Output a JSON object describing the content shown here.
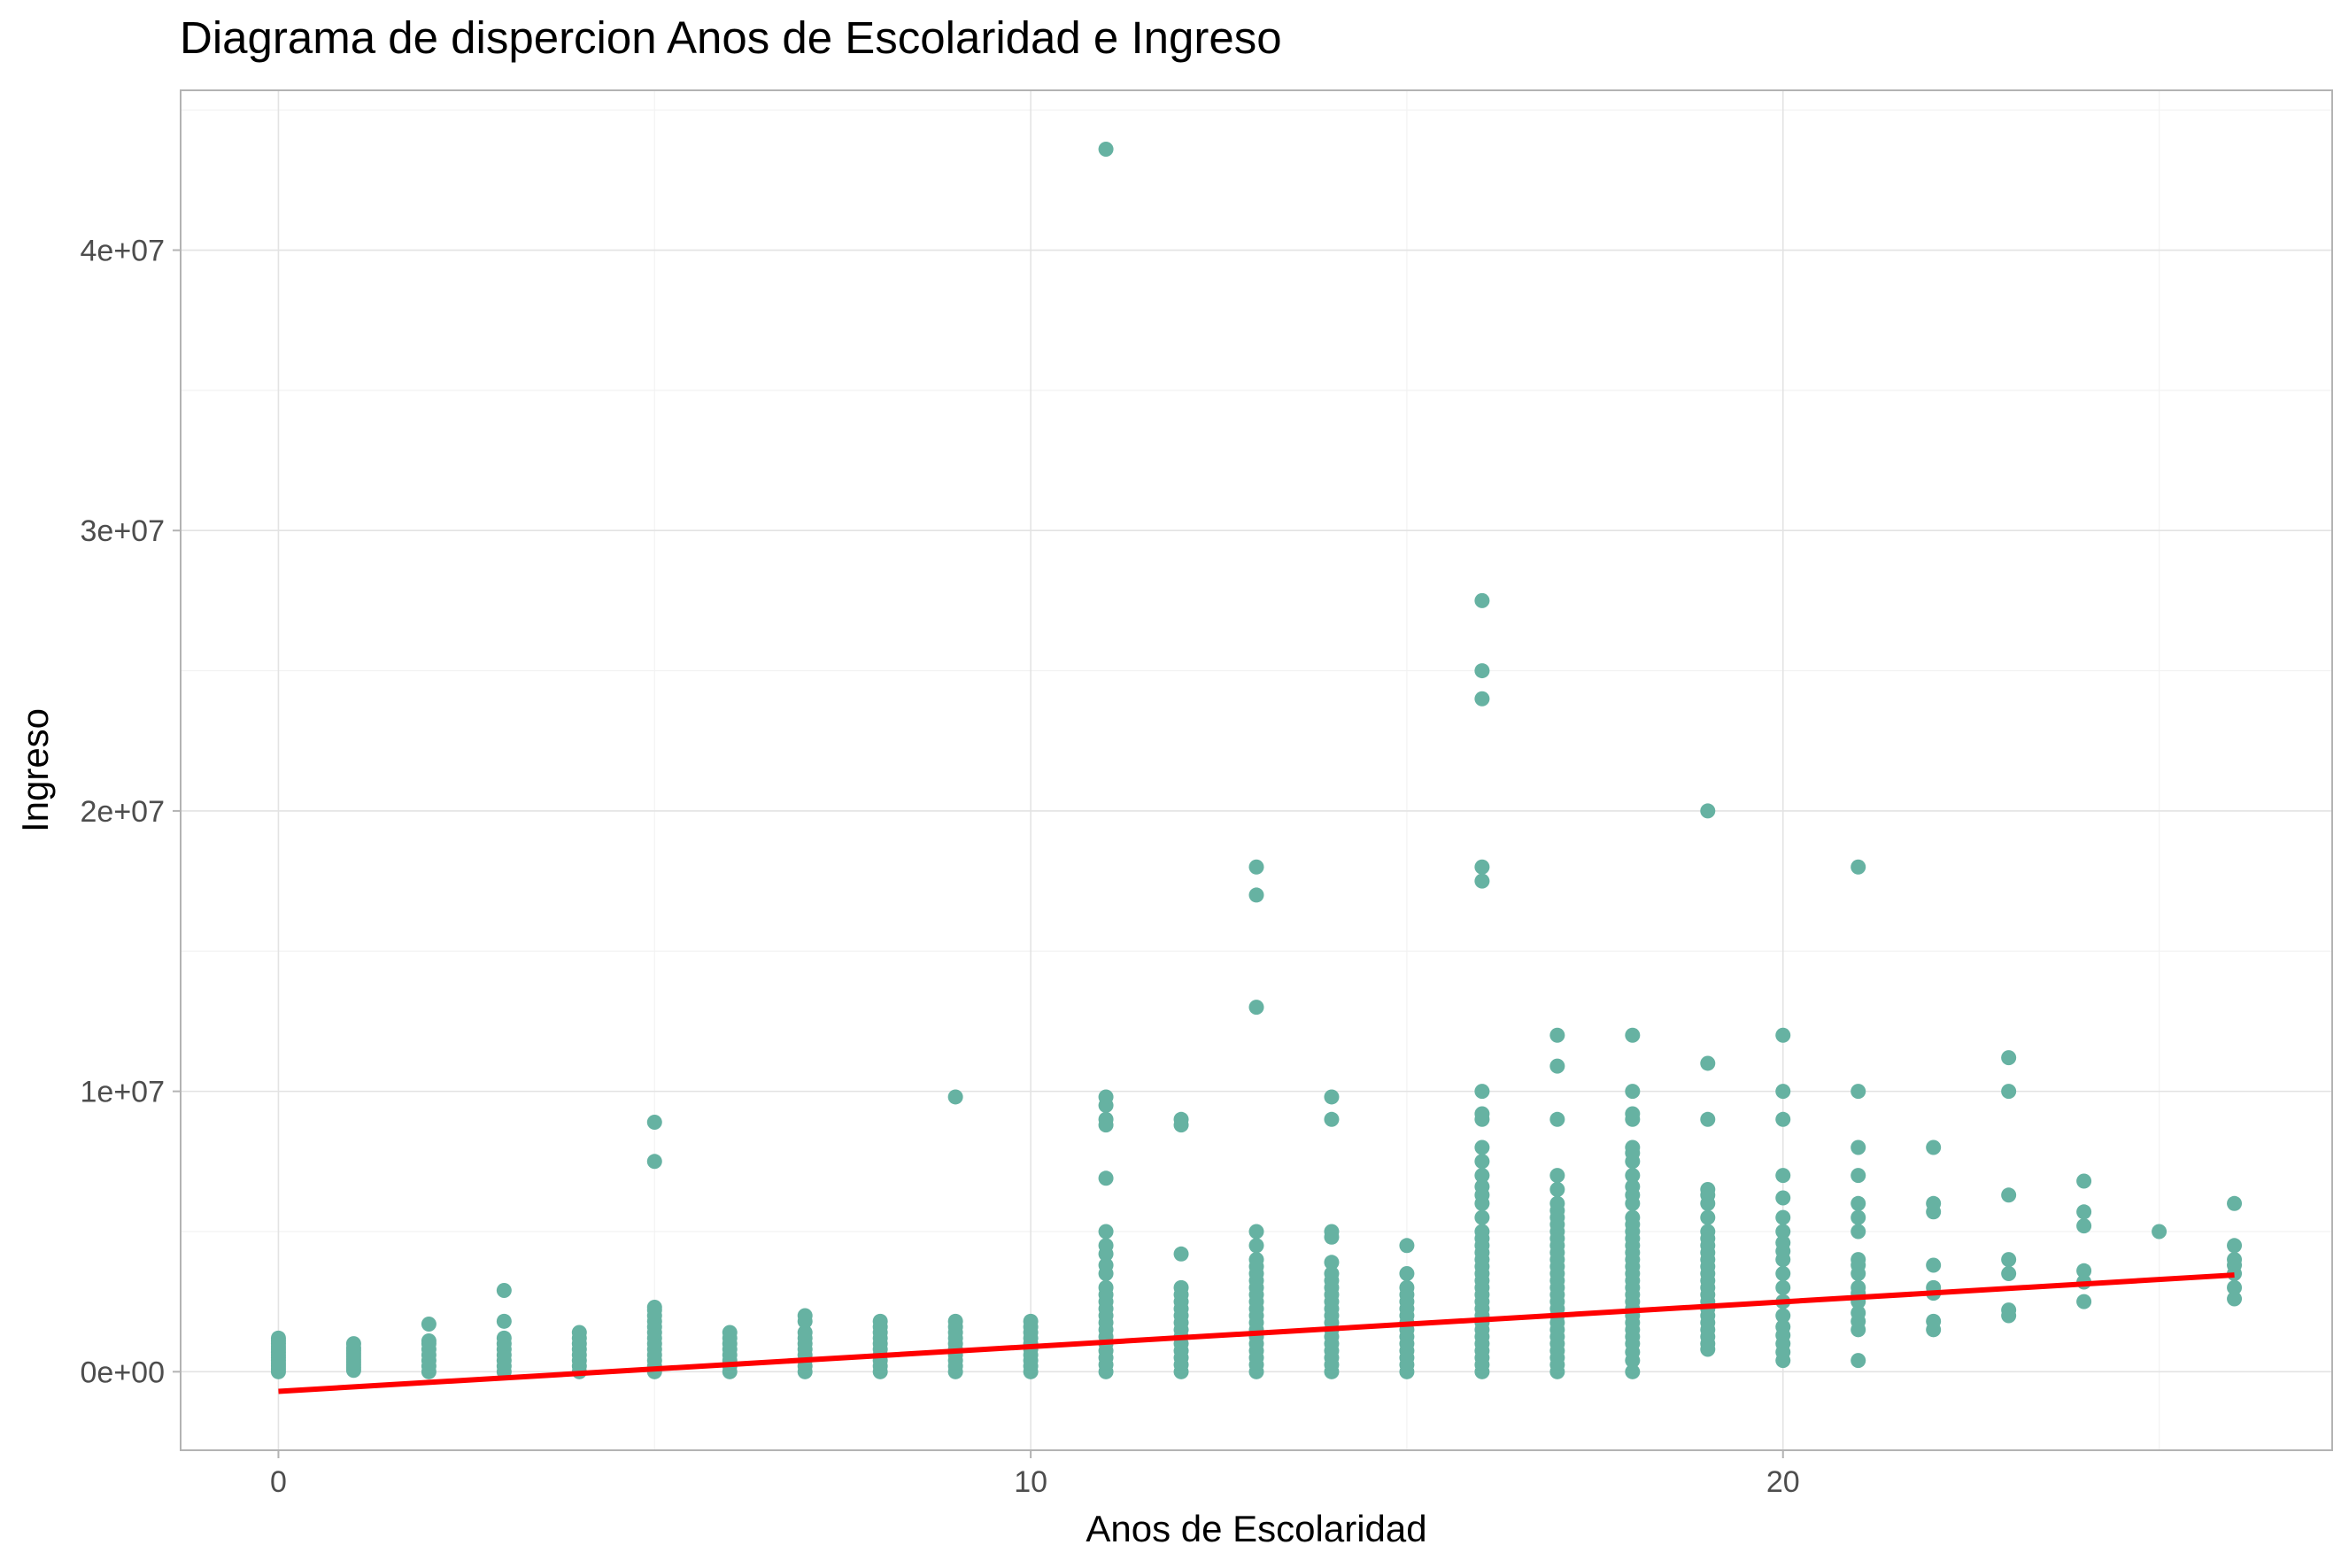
{
  "chart_data": {
    "type": "scatter",
    "title": "Diagrama de dispercion Anos de Escolaridad e Ingreso",
    "xlabel": "Anos de Escolaridad",
    "ylabel": "Ingreso",
    "xlim": [
      -1.3,
      27.3
    ],
    "ylim": [
      -2800000,
      45700000
    ],
    "x_ticks": [
      0,
      10,
      20
    ],
    "x_tick_labels": [
      "0",
      "10",
      "20"
    ],
    "y_ticks": [
      0,
      10000000,
      20000000,
      30000000,
      40000000
    ],
    "y_tick_labels": [
      "0e+00",
      "1e+07",
      "2e+07",
      "3e+07",
      "4e+07"
    ],
    "grid": true,
    "point_color": "#66b2a2",
    "line_color": "#ff0000",
    "fit_line": {
      "x": [
        0,
        26
      ],
      "y": [
        -700000,
        3450000
      ]
    },
    "points": [
      {
        "x": 0,
        "y": [
          0,
          100000,
          200000,
          300000,
          400000,
          500000,
          600000,
          700000,
          800000,
          900000,
          1000000,
          1100000,
          1200000
        ]
      },
      {
        "x": 1,
        "y": [
          50000,
          150000,
          250000,
          350000,
          450000,
          550000,
          650000,
          750000,
          850000,
          1000000
        ]
      },
      {
        "x": 2,
        "y": [
          0,
          200000,
          400000,
          600000,
          800000,
          1000000,
          1100000,
          1700000
        ]
      },
      {
        "x": 3,
        "y": [
          0,
          200000,
          400000,
          600000,
          800000,
          1000000,
          1200000,
          1800000,
          2900000
        ]
      },
      {
        "x": 4,
        "y": [
          0,
          200000,
          400000,
          600000,
          800000,
          1000000,
          1200000,
          1400000
        ]
      },
      {
        "x": 5,
        "y": [
          0,
          200000,
          400000,
          600000,
          800000,
          1000000,
          1200000,
          1400000,
          1600000,
          1800000,
          2000000,
          2200000,
          2300000,
          7500000,
          8900000
        ]
      },
      {
        "x": 6,
        "y": [
          0,
          200000,
          400000,
          600000,
          800000,
          1000000,
          1200000,
          1400000
        ]
      },
      {
        "x": 7,
        "y": [
          0,
          200000,
          400000,
          600000,
          800000,
          1000000,
          1200000,
          1400000,
          1800000,
          2000000
        ]
      },
      {
        "x": 8,
        "y": [
          0,
          200000,
          400000,
          600000,
          800000,
          1000000,
          1200000,
          1400000,
          1600000,
          1800000
        ]
      },
      {
        "x": 9,
        "y": [
          0,
          200000,
          400000,
          600000,
          800000,
          1000000,
          1200000,
          1400000,
          1600000,
          1800000,
          9800000
        ]
      },
      {
        "x": 10,
        "y": [
          0,
          200000,
          400000,
          600000,
          800000,
          1000000,
          1200000,
          1400000,
          1600000,
          1800000
        ]
      },
      {
        "x": 11,
        "y": [
          0,
          250000,
          500000,
          750000,
          1000000,
          1250000,
          1500000,
          1750000,
          2000000,
          2250000,
          2500000,
          2750000,
          3000000,
          3500000,
          3800000,
          4200000,
          4500000,
          5000000,
          6900000,
          8800000,
          9000000,
          9500000,
          9800000,
          43600000
        ]
      },
      {
        "x": 12,
        "y": [
          0,
          250000,
          500000,
          750000,
          1000000,
          1250000,
          1500000,
          1750000,
          2000000,
          2250000,
          2500000,
          2750000,
          3000000,
          4200000,
          8800000,
          9000000
        ]
      },
      {
        "x": 13,
        "y": [
          0,
          250000,
          500000,
          750000,
          1000000,
          1250000,
          1500000,
          1750000,
          2000000,
          2250000,
          2500000,
          2750000,
          3000000,
          3250000,
          3500000,
          3750000,
          4000000,
          4500000,
          5000000,
          13000000,
          17000000,
          18000000
        ]
      },
      {
        "x": 14,
        "y": [
          0,
          250000,
          500000,
          750000,
          1000000,
          1250000,
          1500000,
          1750000,
          2000000,
          2250000,
          2500000,
          2750000,
          3000000,
          3250000,
          3500000,
          3900000,
          4800000,
          5000000,
          9000000,
          9800000
        ]
      },
      {
        "x": 15,
        "y": [
          0,
          250000,
          500000,
          750000,
          1000000,
          1250000,
          1500000,
          1750000,
          2000000,
          2250000,
          2500000,
          2750000,
          3000000,
          3500000,
          4500000
        ]
      },
      {
        "x": 16,
        "y": [
          0,
          250000,
          500000,
          750000,
          1000000,
          1250000,
          1500000,
          1750000,
          2000000,
          2250000,
          2500000,
          2750000,
          3000000,
          3250000,
          3500000,
          3750000,
          4000000,
          4250000,
          4500000,
          4750000,
          5000000,
          5500000,
          6000000,
          6300000,
          6600000,
          7000000,
          7500000,
          8000000,
          9000000,
          9200000,
          10000000,
          17500000,
          18000000,
          24000000,
          25000000,
          27500000
        ]
      },
      {
        "x": 17,
        "y": [
          0,
          250000,
          500000,
          750000,
          1000000,
          1250000,
          1500000,
          1750000,
          2000000,
          2250000,
          2500000,
          2750000,
          3000000,
          3250000,
          3500000,
          3750000,
          4000000,
          4250000,
          4500000,
          4750000,
          5000000,
          5250000,
          5500000,
          5750000,
          6000000,
          6500000,
          7000000,
          9000000,
          10900000,
          12000000
        ]
      },
      {
        "x": 18,
        "y": [
          0,
          400000,
          700000,
          1000000,
          1250000,
          1500000,
          1750000,
          2000000,
          2250000,
          2500000,
          2750000,
          3000000,
          3250000,
          3500000,
          3750000,
          4000000,
          4250000,
          4500000,
          4750000,
          5000000,
          5250000,
          5500000,
          6000000,
          6300000,
          6600000,
          7000000,
          7500000,
          7800000,
          8000000,
          9000000,
          9200000,
          10000000,
          12000000
        ]
      },
      {
        "x": 19,
        "y": [
          800000,
          1000000,
          1250000,
          1500000,
          1750000,
          2000000,
          2250000,
          2500000,
          2750000,
          3000000,
          3250000,
          3500000,
          3750000,
          4000000,
          4250000,
          4500000,
          4750000,
          5000000,
          5500000,
          6000000,
          6300000,
          6500000,
          9000000,
          11000000,
          20000000
        ]
      },
      {
        "x": 20,
        "y": [
          400000,
          700000,
          1000000,
          1300000,
          1600000,
          2000000,
          2500000,
          3000000,
          3500000,
          4000000,
          4300000,
          4600000,
          5000000,
          5500000,
          6200000,
          7000000,
          9000000,
          10000000,
          12000000
        ]
      },
      {
        "x": 21,
        "y": [
          400000,
          1500000,
          1800000,
          2100000,
          2500000,
          2800000,
          3000000,
          3500000,
          3800000,
          4000000,
          5000000,
          5500000,
          6000000,
          7000000,
          8000000,
          10000000,
          18000000
        ]
      },
      {
        "x": 22,
        "y": [
          1500000,
          1800000,
          2800000,
          3000000,
          3800000,
          5700000,
          6000000,
          8000000
        ]
      },
      {
        "x": 23,
        "y": [
          2000000,
          2200000,
          3500000,
          4000000,
          6300000,
          10000000,
          11200000
        ]
      },
      {
        "x": 24,
        "y": [
          2500000,
          3200000,
          3600000,
          5200000,
          5700000,
          6800000
        ]
      },
      {
        "x": 25,
        "y": [
          5000000
        ]
      },
      {
        "x": 26,
        "y": [
          2600000,
          3000000,
          3500000,
          3800000,
          4000000,
          4500000,
          6000000
        ]
      }
    ]
  }
}
